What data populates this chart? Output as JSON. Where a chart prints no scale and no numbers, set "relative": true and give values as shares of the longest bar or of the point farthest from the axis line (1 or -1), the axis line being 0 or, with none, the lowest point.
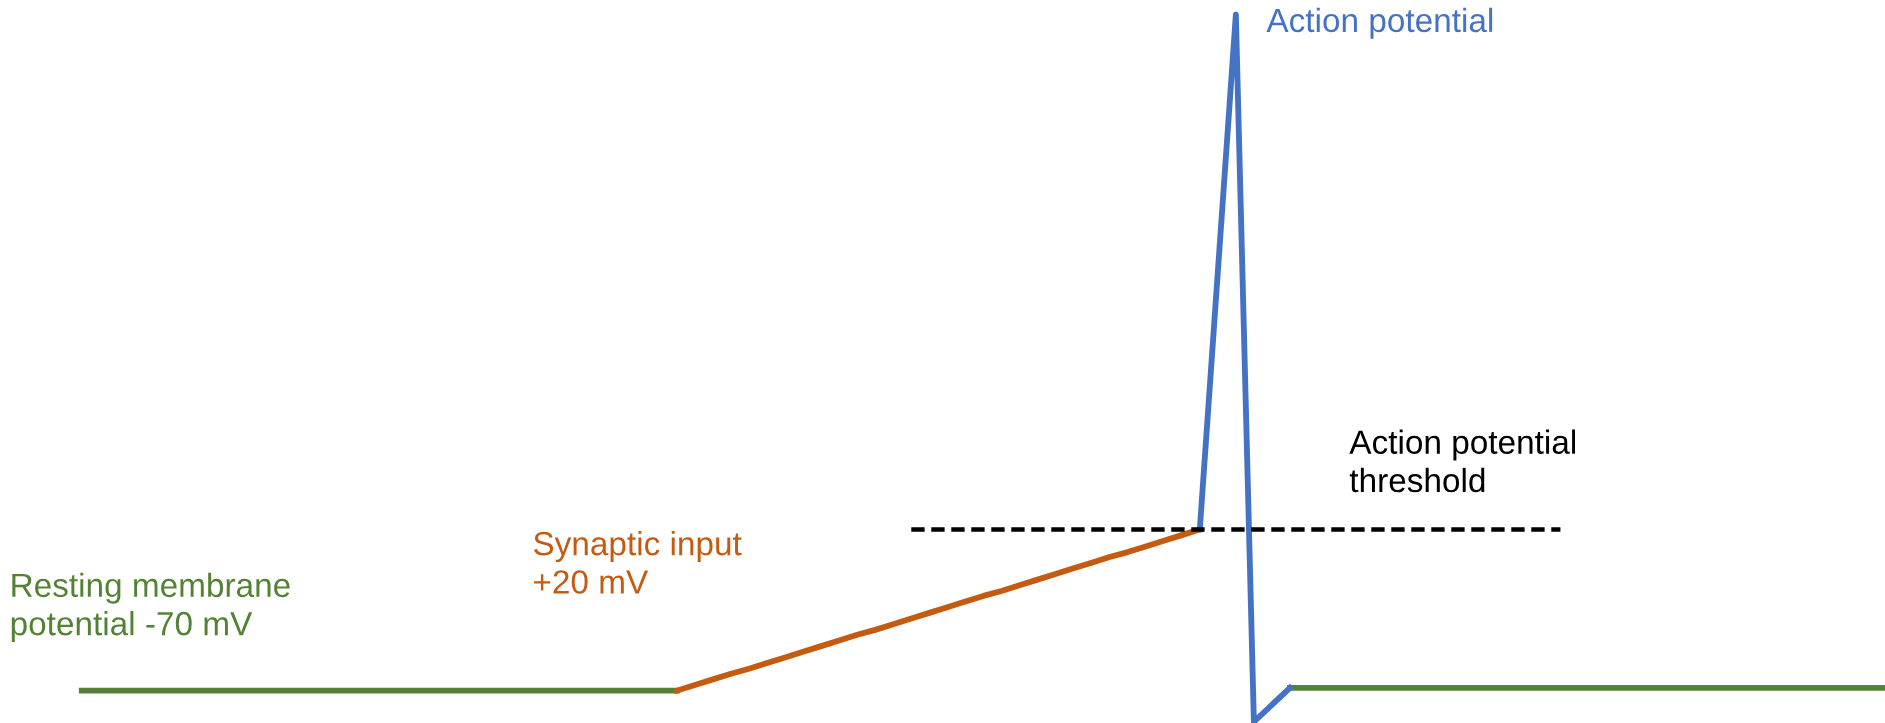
{
  "chart_data": {
    "type": "line",
    "relative": true,
    "categories": [
      null,
      null,
      null,
      null,
      null,
      null,
      null,
      null,
      null,
      null,
      null,
      null,
      null,
      null,
      null,
      null,
      null,
      null,
      null,
      null,
      null,
      null,
      null,
      null,
      null,
      null,
      null,
      null,
      null,
      null,
      null,
      null,
      null,
      null,
      null,
      null,
      null,
      null,
      null,
      null,
      null,
      null,
      null,
      null,
      null,
      null,
      null,
      null,
      null,
      null,
      null,
      null,
      null,
      null,
      null,
      null,
      null,
      null,
      null,
      null,
      null,
      null,
      null,
      null,
      null,
      null,
      null,
      null,
      null,
      null,
      null,
      null,
      null,
      null,
      null,
      null,
      null,
      null,
      null,
      null,
      null,
      null,
      null,
      null,
      null,
      null,
      null,
      null,
      null,
      null,
      null,
      null,
      null,
      null,
      null,
      null,
      null,
      null,
      null,
      null,
      null
    ],
    "series": [
      {
        "name": "Resting membrane potential -70 mV",
        "color": "#548235",
        "values": [
          0.044,
          0.044,
          0.044,
          0.044,
          0.044,
          0.044,
          0.044,
          0.044,
          0.044,
          0.044,
          0.044,
          0.044,
          0.044,
          0.044,
          0.044,
          0.044,
          0.044,
          0.044,
          0.044,
          0.044,
          0.044,
          0.044,
          0.044,
          0.044,
          0.044,
          0.044,
          0.044,
          0.044,
          0.044,
          0.044,
          0.044,
          0.044,
          0.044,
          0.044,
          null,
          null,
          null,
          null,
          null,
          null,
          null,
          null,
          null,
          null,
          null,
          null,
          null,
          null,
          null,
          null,
          null,
          null,
          null,
          null,
          null,
          null,
          null,
          null,
          null,
          null,
          null,
          null,
          null,
          null,
          null,
          null,
          null,
          0.048,
          0.048,
          0.048,
          0.048,
          0.048,
          0.048,
          0.048,
          0.048,
          0.048,
          0.048,
          0.048,
          0.048,
          0.048,
          0.048,
          0.048,
          0.048,
          0.048,
          0.048,
          0.048,
          0.048,
          0.048,
          0.048,
          0.048,
          0.048,
          0.048,
          0.048,
          0.048,
          0.048,
          0.048,
          0.048,
          0.048,
          0.048,
          0.048,
          0.048
        ]
      },
      {
        "name": "Synaptic input +20 mV",
        "color": "#c55a11",
        "values": [
          null,
          null,
          null,
          null,
          null,
          null,
          null,
          null,
          null,
          null,
          null,
          null,
          null,
          null,
          null,
          null,
          null,
          null,
          null,
          null,
          null,
          null,
          null,
          null,
          null,
          null,
          null,
          null,
          null,
          null,
          null,
          null,
          null,
          0.044,
          0.052,
          0.06,
          0.068,
          0.075,
          0.083,
          0.091,
          0.099,
          0.107,
          0.115,
          0.123,
          0.13,
          0.138,
          0.146,
          0.154,
          0.162,
          0.17,
          0.178,
          0.185,
          0.193,
          0.201,
          0.209,
          0.217,
          0.225,
          0.233,
          0.24,
          0.248,
          0.256,
          0.264,
          0.272,
          null,
          null,
          null,
          null,
          null,
          null,
          null,
          null,
          null,
          null,
          null,
          null,
          null,
          null,
          null,
          null,
          null,
          null,
          null,
          null,
          null,
          null,
          null,
          null,
          null,
          null,
          null,
          null,
          null,
          null,
          null,
          null,
          null,
          null,
          null,
          null,
          null,
          null
        ]
      },
      {
        "name": "Action potential",
        "color": "#4472c4",
        "values": [
          null,
          null,
          null,
          null,
          null,
          null,
          null,
          null,
          null,
          null,
          null,
          null,
          null,
          null,
          null,
          null,
          null,
          null,
          null,
          null,
          null,
          null,
          null,
          null,
          null,
          null,
          null,
          null,
          null,
          null,
          null,
          null,
          null,
          null,
          null,
          null,
          null,
          null,
          null,
          null,
          null,
          null,
          null,
          null,
          null,
          null,
          null,
          null,
          null,
          null,
          null,
          null,
          null,
          null,
          null,
          null,
          null,
          null,
          null,
          null,
          null,
          null,
          0.272,
          0.636,
          1,
          0,
          0.024,
          0.048,
          null,
          null,
          null,
          null,
          null,
          null,
          null,
          null,
          null,
          null,
          null,
          null,
          null,
          null,
          null,
          null,
          null,
          null,
          null,
          null,
          null,
          null,
          null,
          null,
          null,
          null,
          null,
          null,
          null,
          null,
          null,
          null,
          null
        ]
      },
      {
        "color": "#000000",
        "line_style": "dashed",
        "values": [
          null,
          null,
          null,
          null,
          null,
          null,
          null,
          null,
          null,
          null,
          null,
          null,
          null,
          null,
          null,
          null,
          null,
          null,
          null,
          null,
          null,
          null,
          null,
          null,
          null,
          null,
          null,
          null,
          null,
          null,
          null,
          null,
          null,
          null,
          null,
          null,
          null,
          null,
          null,
          null,
          null,
          null,
          null,
          null,
          null,
          null,
          0.272,
          0.272,
          0.272,
          0.272,
          0.272,
          0.272,
          0.272,
          0.272,
          0.272,
          0.272,
          0.272,
          0.272,
          0.272,
          0.272,
          0.272,
          0.272,
          0.272,
          0.272,
          0.272,
          0.272,
          0.272,
          0.272,
          0.272,
          0.272,
          0.272,
          0.272,
          0.272,
          0.272,
          0.272,
          0.272,
          0.272,
          0.272,
          0.272,
          0.272,
          0.272,
          0.272,
          0.272,
          null,
          null,
          null,
          null,
          null,
          null,
          null,
          null,
          null,
          null,
          null,
          null,
          null,
          null,
          null,
          null,
          null,
          null
        ]
      }
    ],
    "annotations": [
      {
        "text": "Action potential threshold",
        "y": 0.272
      }
    ]
  }
}
